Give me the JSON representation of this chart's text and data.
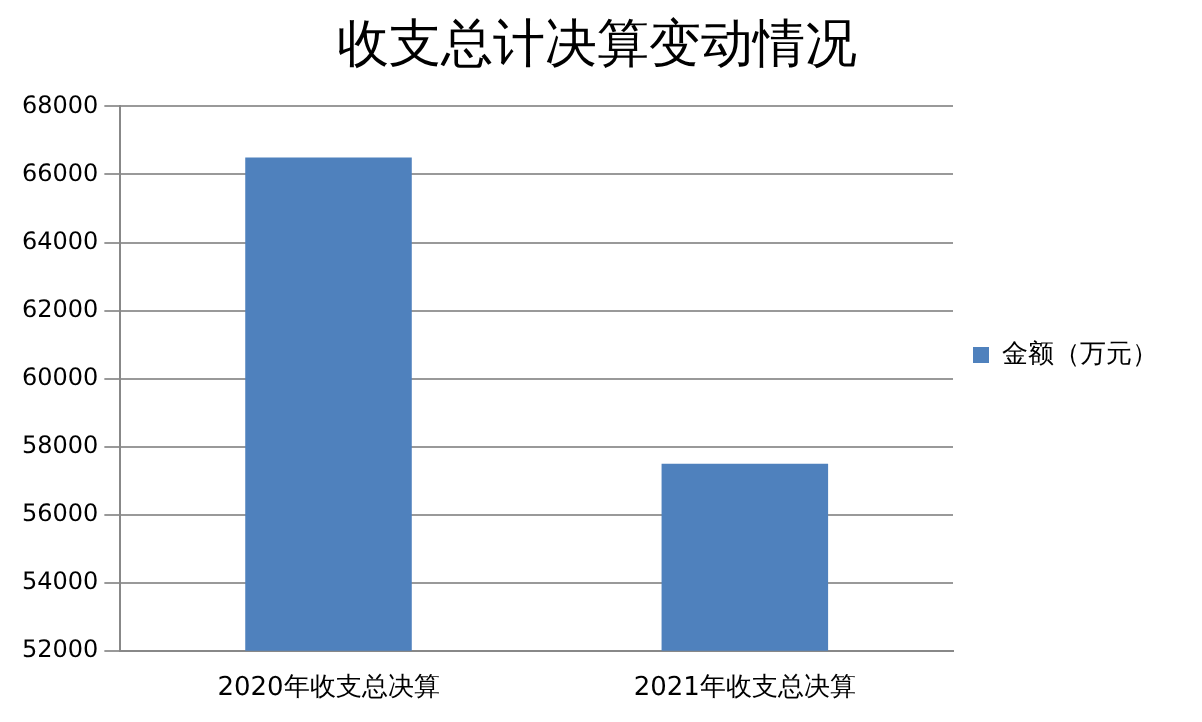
{
  "chart_data": {
    "type": "bar",
    "title": "收支总计决算变动情况",
    "categories": [
      "2020年收支总决算",
      "2021年收支总决算"
    ],
    "series": [
      {
        "name": "金额（万元）",
        "color": "#4f81bd",
        "values": [
          66500,
          57500
        ]
      }
    ],
    "ylim": [
      52000,
      68000
    ],
    "yticks": [
      52000,
      54000,
      56000,
      58000,
      60000,
      62000,
      64000,
      66000,
      68000
    ],
    "grid": "y",
    "legend": "right"
  }
}
